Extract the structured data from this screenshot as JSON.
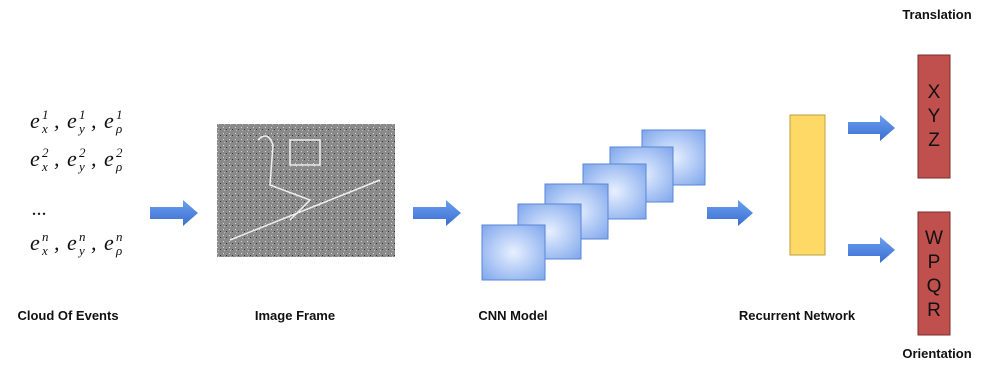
{
  "events": {
    "rows": [
      {
        "terms": [
          {
            "base": "e",
            "sub": "x",
            "sup": "1"
          },
          {
            "base": "e",
            "sub": "y",
            "sup": "1"
          },
          {
            "base": "e",
            "sub": "ρ",
            "sup": "1"
          }
        ]
      },
      {
        "terms": [
          {
            "base": "e",
            "sub": "x",
            "sup": "2"
          },
          {
            "base": "e",
            "sub": "y",
            "sup": "2"
          },
          {
            "base": "e",
            "sub": "ρ",
            "sup": "2"
          }
        ]
      },
      {
        "terms": [
          {
            "base": "e",
            "sub": "x",
            "sup": "n"
          },
          {
            "base": "e",
            "sub": "y",
            "sup": "n"
          },
          {
            "base": "e",
            "sub": "ρ",
            "sup": "n"
          }
        ]
      }
    ],
    "separator": ",",
    "ellipsis": "...",
    "label": "Cloud Of Events"
  },
  "image_frame": {
    "label": "Image Frame"
  },
  "cnn": {
    "label": "CNN Model"
  },
  "recurrent": {
    "label": "Recurrent Network"
  },
  "translation": {
    "title": "Translation",
    "letters": [
      "X",
      "Y",
      "Z"
    ]
  },
  "orientation": {
    "title": "Orientation",
    "letters": [
      "W",
      "P",
      "Q",
      "R"
    ]
  }
}
